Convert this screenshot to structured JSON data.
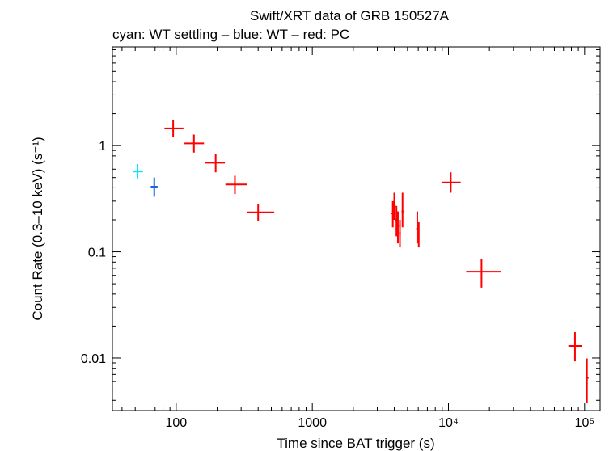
{
  "chart_data": {
    "type": "scatter",
    "title": "Swift/XRT data of GRB 150527A",
    "subtitle": "cyan: WT settling – blue: WT – red: PC",
    "xlabel": "Time since BAT trigger (s)",
    "ylabel": "Count Rate (0.3–10 keV) (s⁻¹)",
    "x_scale": "log",
    "y_scale": "log",
    "xlim": [
      34,
      130000
    ],
    "ylim": [
      0.0032,
      8.5
    ],
    "grid": false,
    "x_ticks": [
      {
        "value": 100,
        "label": "100"
      },
      {
        "value": 1000,
        "label": "1000"
      },
      {
        "value": 10000,
        "label": "10⁴"
      },
      {
        "value": 100000,
        "label": "10⁵"
      }
    ],
    "y_ticks": [
      {
        "value": 0.01,
        "label": "0.01"
      },
      {
        "value": 0.1,
        "label": "0.1"
      },
      {
        "value": 1,
        "label": "1"
      }
    ],
    "series": [
      {
        "color": "#00e5ff",
        "points": [
          {
            "x": 52,
            "xlo": 48,
            "xhi": 57,
            "y": 0.57,
            "ylo": 0.49,
            "yhi": 0.67
          }
        ]
      },
      {
        "color": "#1565e0",
        "points": [
          {
            "x": 69,
            "xlo": 65,
            "xhi": 73,
            "y": 0.41,
            "ylo": 0.33,
            "yhi": 0.5
          }
        ]
      },
      {
        "color": "#ff0000",
        "points": [
          {
            "x": 95,
            "xlo": 82,
            "xhi": 113,
            "y": 1.45,
            "ylo": 1.2,
            "yhi": 1.75
          },
          {
            "x": 135,
            "xlo": 115,
            "xhi": 160,
            "y": 1.05,
            "ylo": 0.86,
            "yhi": 1.27
          },
          {
            "x": 195,
            "xlo": 162,
            "xhi": 228,
            "y": 0.69,
            "ylo": 0.56,
            "yhi": 0.84
          },
          {
            "x": 270,
            "xlo": 230,
            "xhi": 330,
            "y": 0.43,
            "ylo": 0.35,
            "yhi": 0.52
          },
          {
            "x": 400,
            "xlo": 332,
            "xhi": 525,
            "y": 0.235,
            "ylo": 0.195,
            "yhi": 0.28
          },
          {
            "x": 3900,
            "xlo": 3800,
            "xhi": 4000,
            "y": 0.23,
            "ylo": 0.17,
            "yhi": 0.3
          },
          {
            "x": 4000,
            "xlo": 3900,
            "xhi": 4100,
            "y": 0.27,
            "ylo": 0.2,
            "yhi": 0.36
          },
          {
            "x": 4150,
            "xlo": 4080,
            "xhi": 4220,
            "y": 0.2,
            "ylo": 0.14,
            "yhi": 0.27
          },
          {
            "x": 4250,
            "xlo": 4180,
            "xhi": 4320,
            "y": 0.175,
            "ylo": 0.12,
            "yhi": 0.24
          },
          {
            "x": 4400,
            "xlo": 4330,
            "xhi": 4470,
            "y": 0.15,
            "ylo": 0.11,
            "yhi": 0.2
          },
          {
            "x": 4600,
            "xlo": 4520,
            "xhi": 4680,
            "y": 0.24,
            "ylo": 0.17,
            "yhi": 0.36
          },
          {
            "x": 5900,
            "xlo": 5800,
            "xhi": 6000,
            "y": 0.165,
            "ylo": 0.12,
            "yhi": 0.24
          },
          {
            "x": 6050,
            "xlo": 5980,
            "xhi": 6120,
            "y": 0.15,
            "ylo": 0.11,
            "yhi": 0.19
          },
          {
            "x": 10400,
            "xlo": 8900,
            "xhi": 12300,
            "y": 0.45,
            "ylo": 0.36,
            "yhi": 0.56
          },
          {
            "x": 17500,
            "xlo": 13500,
            "xhi": 24500,
            "y": 0.065,
            "ylo": 0.046,
            "yhi": 0.086
          },
          {
            "x": 85000,
            "xlo": 76000,
            "xhi": 96000,
            "y": 0.013,
            "ylo": 0.0093,
            "yhi": 0.0175
          },
          {
            "x": 104000,
            "xlo": 101500,
            "xhi": 107000,
            "y": 0.0065,
            "ylo": 0.0038,
            "yhi": 0.0099
          }
        ]
      }
    ]
  }
}
